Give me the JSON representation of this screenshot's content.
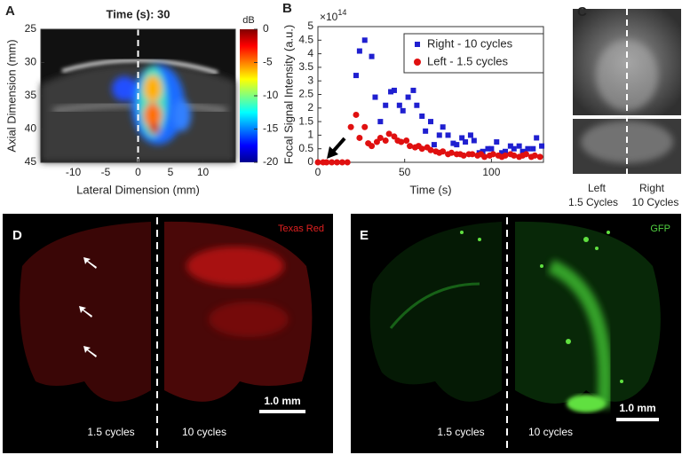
{
  "chart_data": [
    {
      "type": "heatmap",
      "panel": "A",
      "title": "Time (s): 30",
      "xlabel": "Lateral Dimension (mm)",
      "ylabel": "Axial Dimension (mm)",
      "xlim": [
        -15,
        15
      ],
      "xticks": [
        -10,
        -5,
        0,
        5,
        10
      ],
      "ylim": [
        25,
        45
      ],
      "yticks": [
        25,
        30,
        35,
        40,
        45
      ],
      "yreverse": true,
      "colorbar_label": "dB",
      "clim": [
        -20,
        0
      ],
      "cticks": [
        0,
        -5,
        -10,
        -15,
        -20
      ]
    },
    {
      "type": "scatter",
      "panel": "B",
      "xlabel": "Time (s)",
      "ylabel": "Focal Signal Intensity (a.u.)",
      "y_multiplier": {
        "base": "×10",
        "exponent": "14"
      },
      "xlim": [
        0,
        130
      ],
      "xticks": [
        0,
        50,
        100
      ],
      "ylim": [
        0,
        5
      ],
      "yticks": [
        0,
        0.5,
        1,
        1.5,
        2,
        2.5,
        3,
        3.5,
        4,
        4.5,
        5
      ],
      "legend": "upper right",
      "series": [
        {
          "name": "Right - 10 cycles",
          "color": "#1f1fd0",
          "marker": "square",
          "x": [
            22,
            24,
            27,
            31,
            33,
            36,
            39,
            42,
            44,
            47,
            49,
            52,
            55,
            57,
            60,
            62,
            65,
            67,
            70,
            72,
            75,
            78,
            80,
            83,
            85,
            88,
            90,
            93,
            95,
            98,
            100,
            103,
            106,
            108,
            111,
            113,
            116,
            118,
            121,
            124,
            126,
            129
          ],
          "values": [
            3.2,
            4.1,
            4.5,
            3.9,
            2.4,
            1.5,
            2.1,
            2.6,
            2.65,
            2.1,
            1.9,
            2.4,
            2.65,
            2.1,
            1.7,
            1.15,
            1.5,
            0.65,
            1.0,
            1.3,
            1.0,
            0.7,
            0.65,
            0.9,
            0.75,
            1.0,
            0.8,
            0.35,
            0.4,
            0.5,
            0.5,
            0.75,
            0.35,
            0.4,
            0.6,
            0.5,
            0.6,
            0.4,
            0.5,
            0.5,
            0.9,
            0.6
          ]
        },
        {
          "name": "Left - 1.5 cycles",
          "color": "#e01010",
          "marker": "circle",
          "x": [
            0,
            3,
            5,
            8,
            11,
            14,
            17,
            19,
            22,
            24,
            27,
            29,
            31,
            34,
            36,
            39,
            41,
            44,
            46,
            48,
            51,
            53,
            56,
            58,
            60,
            63,
            65,
            68,
            70,
            72,
            75,
            77,
            80,
            82,
            84,
            87,
            89,
            92,
            94,
            96,
            99,
            101,
            104,
            106,
            108,
            111,
            113,
            116,
            118,
            120,
            123,
            125,
            128
          ],
          "values": [
            0,
            0,
            0,
            0,
            0,
            0,
            0,
            1.3,
            1.75,
            0.9,
            1.3,
            0.7,
            0.6,
            0.75,
            0.9,
            0.8,
            1.05,
            0.95,
            0.8,
            0.75,
            0.8,
            0.6,
            0.55,
            0.6,
            0.5,
            0.55,
            0.45,
            0.4,
            0.35,
            0.4,
            0.3,
            0.35,
            0.3,
            0.3,
            0.25,
            0.3,
            0.3,
            0.25,
            0.3,
            0.2,
            0.25,
            0.3,
            0.25,
            0.2,
            0.25,
            0.3,
            0.25,
            0.2,
            0.25,
            0.3,
            0.2,
            0.25,
            0.2
          ]
        }
      ]
    }
  ],
  "panel_c": {
    "label": "C",
    "left": "Left",
    "left_cycles": "1.5 Cycles",
    "right": "Right",
    "right_cycles": "10 Cycles"
  },
  "panel_d": {
    "label": "D",
    "stain": "Texas Red",
    "scale_bar": "1.0 mm",
    "left_cycles": "1.5 cycles",
    "right_cycles": "10 cycles"
  },
  "panel_e": {
    "label": "E",
    "stain": "GFP",
    "scale_bar": "1.0 mm",
    "left_cycles": "1.5 cycles",
    "right_cycles": "10 cycles"
  }
}
